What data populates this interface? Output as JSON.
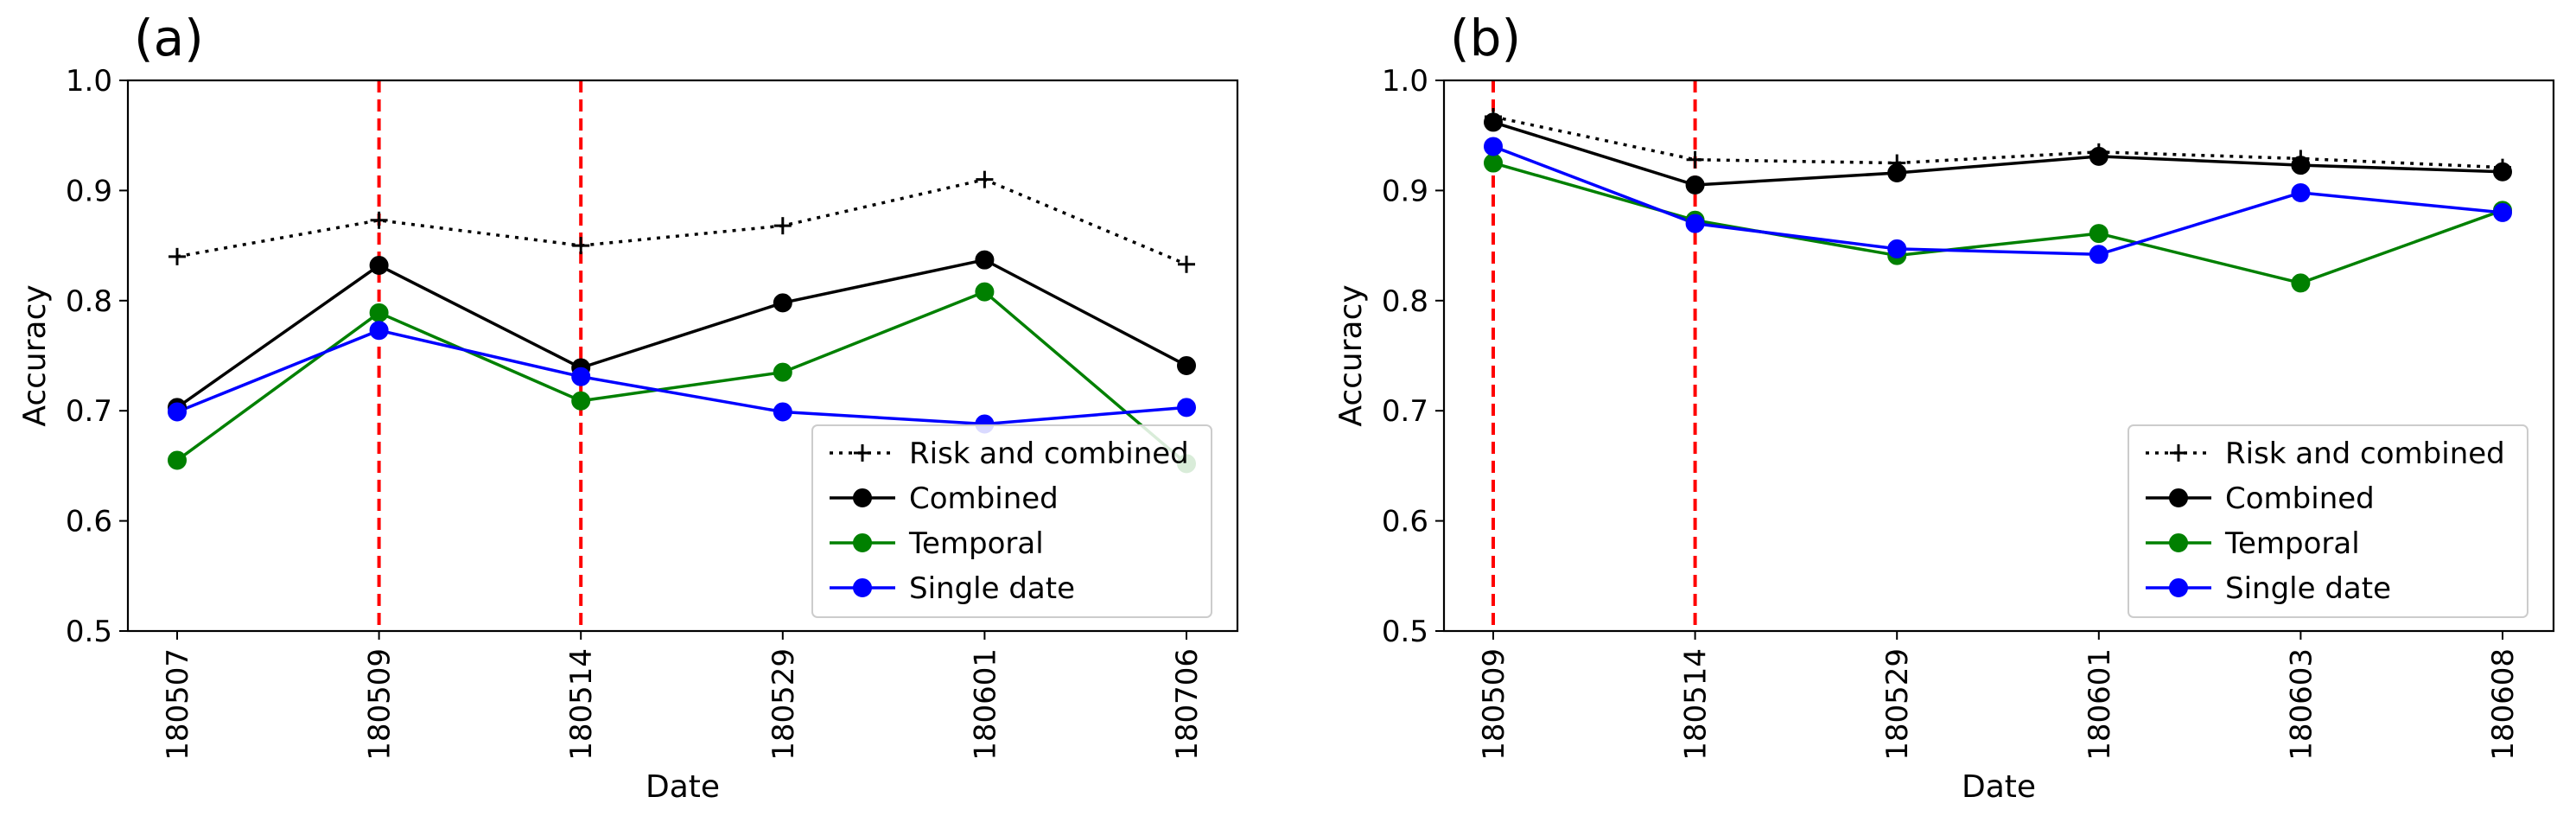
{
  "chart_data": [
    {
      "type": "line",
      "panel_label": "(a)",
      "xlabel": "Date",
      "ylabel": "Accuracy",
      "ylim": [
        0.5,
        1.0
      ],
      "yticks": [
        "0.5",
        "0.6",
        "0.7",
        "0.8",
        "0.9",
        "1.0"
      ],
      "categories": [
        "180507",
        "180509",
        "180514",
        "180529",
        "180601",
        "180706"
      ],
      "vlines": [
        "180509",
        "180514"
      ],
      "legend_position": "lower-right",
      "series": [
        {
          "name": "Risk and combined",
          "style": "dotted",
          "marker": "plus",
          "color": "#000000",
          "values": [
            0.84,
            0.873,
            0.85,
            0.868,
            0.91,
            0.833
          ]
        },
        {
          "name": "Combined",
          "style": "solid",
          "marker": "circle",
          "color": "#000000",
          "values": [
            0.703,
            0.832,
            0.739,
            0.798,
            0.837,
            0.741
          ]
        },
        {
          "name": "Temporal",
          "style": "solid",
          "marker": "circle",
          "color": "#008000",
          "values": [
            0.655,
            0.789,
            0.709,
            0.735,
            0.808,
            0.652
          ]
        },
        {
          "name": "Single date",
          "style": "solid",
          "marker": "circle",
          "color": "#0000ff",
          "values": [
            0.699,
            0.773,
            0.731,
            0.699,
            0.688,
            0.703
          ]
        }
      ]
    },
    {
      "type": "line",
      "panel_label": "(b)",
      "xlabel": "Date",
      "ylabel": "Accuracy",
      "ylim": [
        0.5,
        1.0
      ],
      "yticks": [
        "0.5",
        "0.6",
        "0.7",
        "0.8",
        "0.9",
        "1.0"
      ],
      "categories": [
        "180509",
        "180514",
        "180529",
        "180601",
        "180603",
        "180608"
      ],
      "vlines": [
        "180509",
        "180514"
      ],
      "legend_position": "lower-right",
      "series": [
        {
          "name": "Risk and combined",
          "style": "dotted",
          "marker": "plus",
          "color": "#000000",
          "values": [
            0.967,
            0.928,
            0.925,
            0.935,
            0.929,
            0.921
          ]
        },
        {
          "name": "Combined",
          "style": "solid",
          "marker": "circle",
          "color": "#000000",
          "values": [
            0.962,
            0.905,
            0.916,
            0.931,
            0.923,
            0.917
          ]
        },
        {
          "name": "Temporal",
          "style": "solid",
          "marker": "circle",
          "color": "#008000",
          "values": [
            0.925,
            0.873,
            0.841,
            0.861,
            0.816,
            0.882
          ]
        },
        {
          "name": "Single date",
          "style": "solid",
          "marker": "circle",
          "color": "#0000ff",
          "values": [
            0.94,
            0.87,
            0.847,
            0.842,
            0.898,
            0.88
          ]
        }
      ]
    }
  ]
}
